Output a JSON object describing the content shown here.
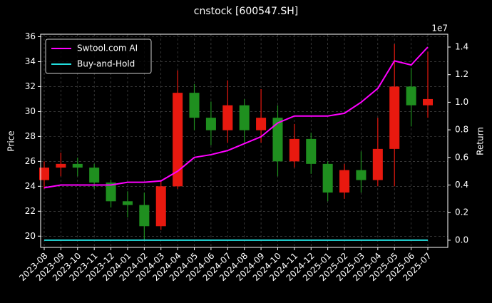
{
  "chart_data": {
    "type": "candlestick",
    "title": "cnstock [600547.SH]",
    "ylabel": "Price",
    "y2label": "Return",
    "y2_offset": "1e7",
    "categories": [
      "2023-08",
      "2023-09",
      "2023-10",
      "2023-11",
      "2023-12",
      "2024-01",
      "2024-02",
      "2024-03",
      "2024-04",
      "2024-05",
      "2024-06",
      "2024-07",
      "2024-08",
      "2024-09",
      "2024-10",
      "2024-11",
      "2024-12",
      "2025-01",
      "2025-02",
      "2025-03",
      "2025-04",
      "2025-05",
      "2025-06",
      "2025-07"
    ],
    "open": [
      24.5,
      25.5,
      25.8,
      25.5,
      24.3,
      22.8,
      22.5,
      20.8,
      24.0,
      31.5,
      29.5,
      28.5,
      30.5,
      28.5,
      29.5,
      26.0,
      27.8,
      25.8,
      23.5,
      25.3,
      24.5,
      27.0,
      32.0,
      30.5
    ],
    "high": [
      26.0,
      26.7,
      26.3,
      25.8,
      24.5,
      23.6,
      23.5,
      24.5,
      33.3,
      32.2,
      30.8,
      32.5,
      31.0,
      31.8,
      30.5,
      29.0,
      28.3,
      26.0,
      25.8,
      26.8,
      29.5,
      35.4,
      33.5,
      34.8
    ],
    "low": [
      23.8,
      24.8,
      24.8,
      23.8,
      22.3,
      21.5,
      19.7,
      20.5,
      23.8,
      28.5,
      27.3,
      27.5,
      27.5,
      27.5,
      24.8,
      25.5,
      25.0,
      22.8,
      23.0,
      23.5,
      24.0,
      24.0,
      28.8,
      29.5
    ],
    "close": [
      25.5,
      25.8,
      25.5,
      24.3,
      22.8,
      22.5,
      20.8,
      24.0,
      31.5,
      29.5,
      28.5,
      30.5,
      28.5,
      29.5,
      26.0,
      27.8,
      25.8,
      23.5,
      25.3,
      24.5,
      27.0,
      32.0,
      30.5,
      31.0
    ],
    "up_color": "#e8190f",
    "down_color": "#1f8f1f",
    "series": [
      {
        "name": "Swtool.com AI",
        "color": "#ff00ff",
        "axis": "y2",
        "values": [
          0.38,
          0.4,
          0.4,
          0.4,
          0.4,
          0.42,
          0.42,
          0.43,
          0.5,
          0.6,
          0.62,
          0.65,
          0.7,
          0.75,
          0.85,
          0.9,
          0.9,
          0.9,
          0.92,
          1.0,
          1.1,
          1.3,
          1.27,
          1.4
        ]
      },
      {
        "name": "Buy-and-Hold",
        "color": "#22dddd",
        "axis": "y2",
        "values": [
          0,
          0,
          0,
          0,
          0,
          0,
          0,
          0,
          0,
          0,
          0,
          0,
          0,
          0,
          0,
          0,
          0,
          0,
          0,
          0,
          0,
          0,
          0,
          0
        ]
      }
    ],
    "ylim": [
      19.1,
      36.2
    ],
    "yticks": [
      20,
      22,
      24,
      26,
      28,
      30,
      32,
      34,
      36
    ],
    "y2lim": [
      -0.052,
      1.493
    ],
    "y2ticks": [
      {
        "value": 0,
        "label": "0.0"
      },
      0.2,
      0.4,
      0.6,
      0.8,
      {
        "value": 1,
        "label": "1.0"
      },
      1.2,
      1.4
    ],
    "grid": true,
    "legend": "upper left"
  }
}
